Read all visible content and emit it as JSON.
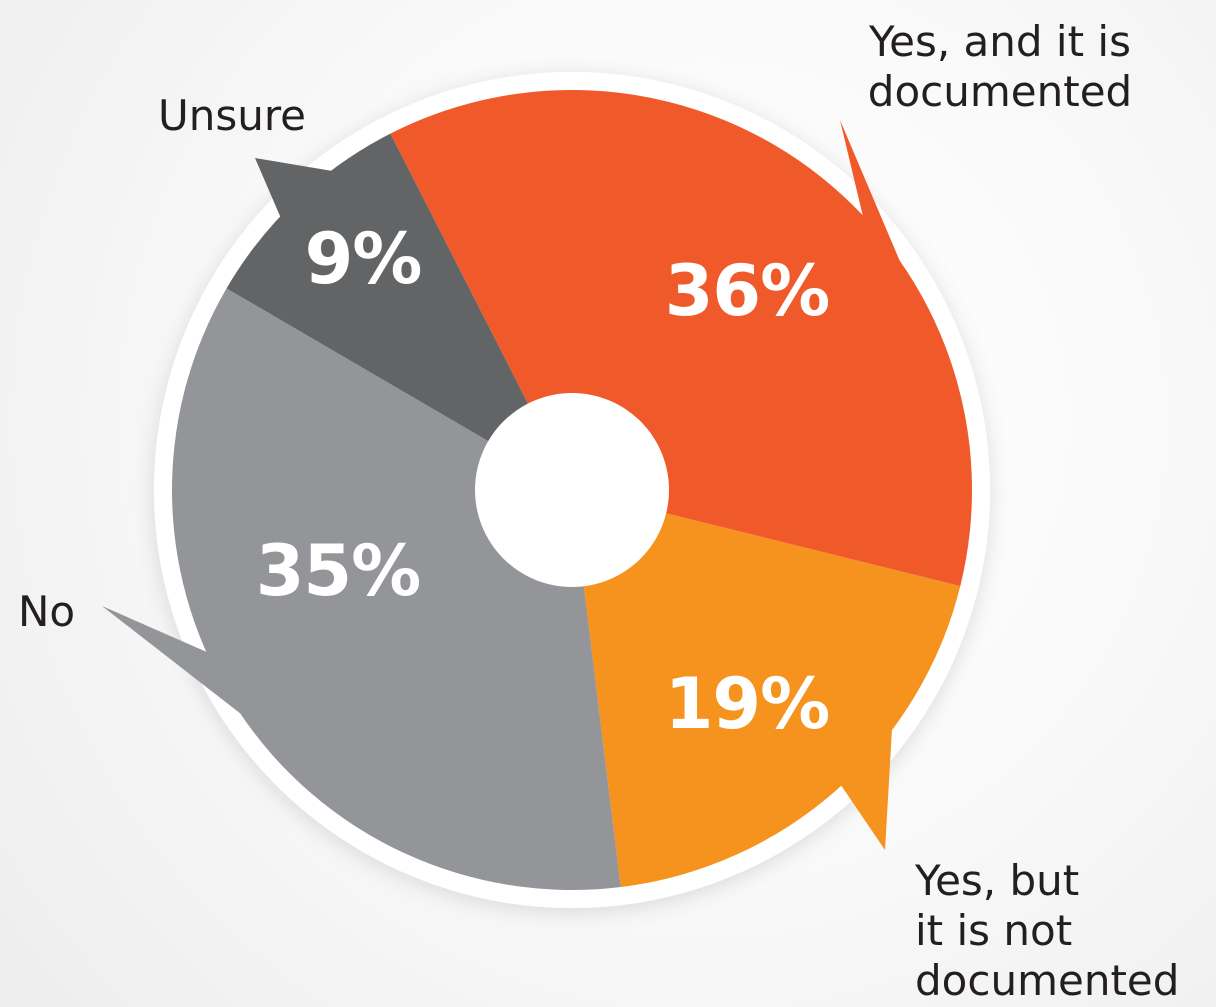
{
  "chart_data": {
    "type": "pie",
    "title": "",
    "donut": true,
    "slices": [
      {
        "label": "Yes, and it is documented",
        "label_lines": [
          "Yes, and it is",
          "documented"
        ],
        "value": 36,
        "value_label": "36%",
        "color": "#f05a2b"
      },
      {
        "label": "Yes, but it is not documented",
        "label_lines": [
          "Yes, but",
          "it is not",
          "documented"
        ],
        "value": 19,
        "value_label": "19%",
        "color": "#f6921e"
      },
      {
        "label": "No",
        "label_lines": [
          "No"
        ],
        "value": 35,
        "value_label": "35%",
        "color": "#939598"
      },
      {
        "label": "Unsure",
        "label_lines": [
          "Unsure"
        ],
        "value": 9,
        "value_label": "9%",
        "color": "#636466"
      }
    ]
  }
}
